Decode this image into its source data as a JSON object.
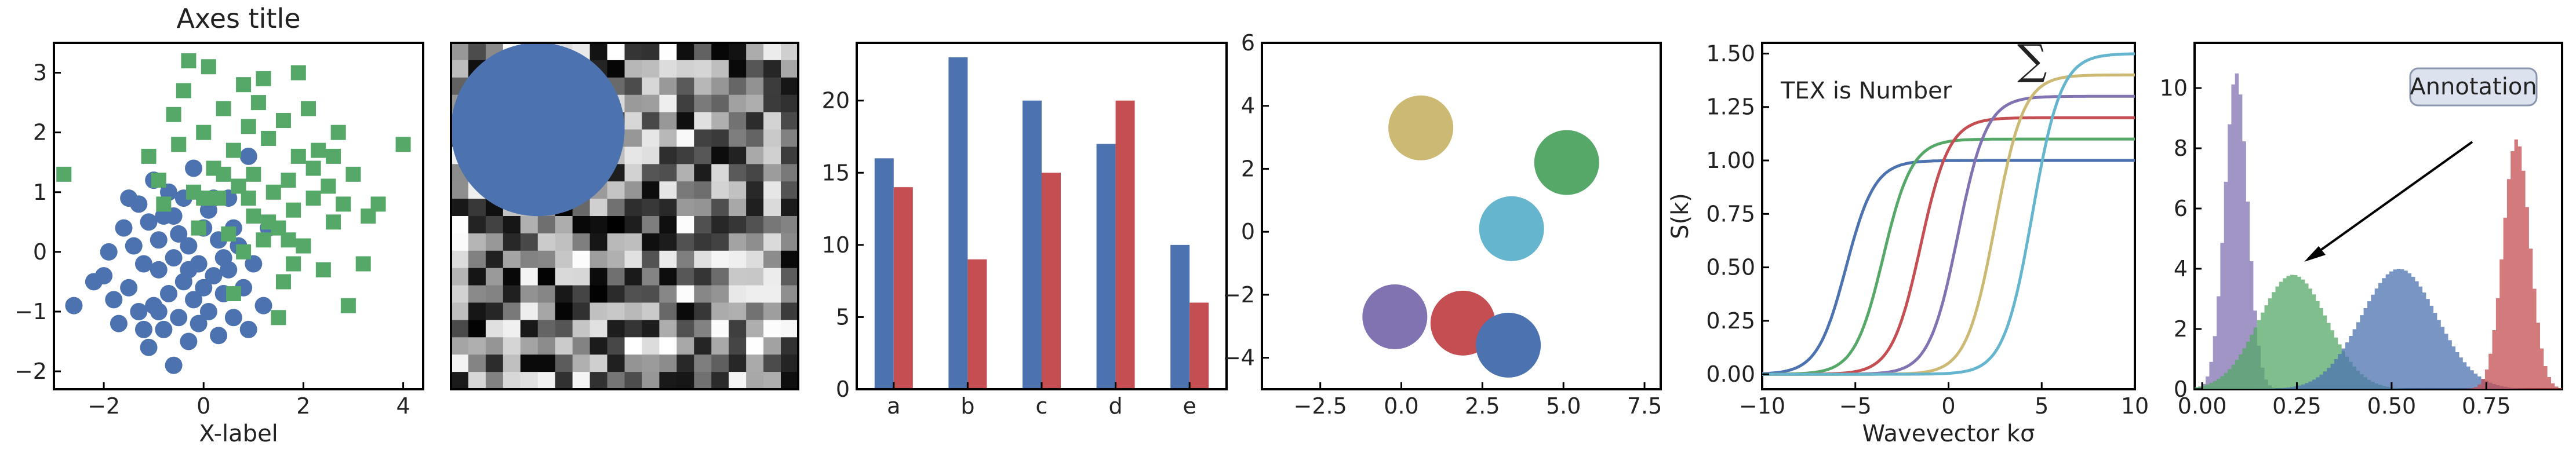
{
  "colors": {
    "blue": "#4c72b0",
    "green": "#55a868",
    "red": "#c44e52",
    "purple": "#8172b2",
    "yellow": "#ccb974",
    "cyan": "#64b5cd"
  },
  "chart_data": [
    {
      "type": "scatter",
      "title": "Axes title",
      "xlabel": "X-label",
      "ylabel": "",
      "xlim": [
        -3.0,
        4.4
      ],
      "ylim": [
        -2.3,
        3.5
      ],
      "xticks": [
        "−2",
        "0",
        "2",
        "4"
      ],
      "yticks": [
        "−2",
        "−1",
        "0",
        "1",
        "2",
        "3"
      ],
      "series": [
        {
          "marker": "circle",
          "color": "blue",
          "points": [
            [
              -2.6,
              -0.9
            ],
            [
              -2.2,
              -0.5
            ],
            [
              -2.0,
              -0.4
            ],
            [
              -1.9,
              0.0
            ],
            [
              -1.8,
              -0.8
            ],
            [
              -1.7,
              -1.2
            ],
            [
              -1.6,
              0.4
            ],
            [
              -1.5,
              -0.6
            ],
            [
              -1.4,
              0.1
            ],
            [
              -1.3,
              -1.0
            ],
            [
              -1.3,
              0.8
            ],
            [
              -1.2,
              -0.2
            ],
            [
              -1.1,
              -1.6
            ],
            [
              -1.1,
              0.5
            ],
            [
              -1.0,
              -0.9
            ],
            [
              -1.0,
              1.2
            ],
            [
              -0.9,
              -0.3
            ],
            [
              -0.9,
              0.2
            ],
            [
              -0.8,
              -1.3
            ],
            [
              -0.8,
              0.6
            ],
            [
              -0.7,
              -0.7
            ],
            [
              -0.7,
              1.0
            ],
            [
              -0.6,
              -0.1
            ],
            [
              -0.6,
              -1.9
            ],
            [
              -0.5,
              0.3
            ],
            [
              -0.5,
              -1.1
            ],
            [
              -0.4,
              -0.5
            ],
            [
              -0.4,
              0.9
            ],
            [
              -0.3,
              -1.5
            ],
            [
              -0.3,
              0.1
            ],
            [
              -0.2,
              -0.8
            ],
            [
              -0.2,
              1.4
            ],
            [
              -0.1,
              -0.2
            ],
            [
              -0.1,
              -1.2
            ],
            [
              0.0,
              0.4
            ],
            [
              0.0,
              -0.6
            ],
            [
              0.1,
              -1.0
            ],
            [
              0.1,
              0.7
            ],
            [
              0.2,
              -0.4
            ],
            [
              0.3,
              -1.4
            ],
            [
              0.3,
              0.2
            ],
            [
              0.4,
              -0.7
            ],
            [
              0.5,
              0.9
            ],
            [
              0.5,
              -0.3
            ],
            [
              0.6,
              -1.1
            ],
            [
              0.7,
              0.1
            ],
            [
              0.8,
              -0.6
            ],
            [
              0.9,
              1.6
            ],
            [
              1.0,
              -0.2
            ],
            [
              1.2,
              -0.9
            ],
            [
              1.3,
              0.4
            ],
            [
              -1.5,
              0.9
            ],
            [
              -0.9,
              -1.0
            ],
            [
              0.2,
              0.9
            ],
            [
              -0.6,
              0.6
            ],
            [
              0.6,
              0.4
            ],
            [
              -1.2,
              -1.3
            ],
            [
              0.9,
              -1.3
            ],
            [
              -0.3,
              -0.3
            ],
            [
              0.4,
              -0.1
            ]
          ]
        },
        {
          "marker": "square",
          "color": "green",
          "points": [
            [
              -2.8,
              1.3
            ],
            [
              -1.1,
              1.6
            ],
            [
              -0.9,
              1.2
            ],
            [
              -0.8,
              0.8
            ],
            [
              -0.6,
              2.3
            ],
            [
              -0.5,
              1.8
            ],
            [
              -0.4,
              2.7
            ],
            [
              -0.3,
              3.2
            ],
            [
              -0.2,
              1.0
            ],
            [
              -0.1,
              0.4
            ],
            [
              0.0,
              2.0
            ],
            [
              0.1,
              3.1
            ],
            [
              0.2,
              1.4
            ],
            [
              0.3,
              0.9
            ],
            [
              0.4,
              2.4
            ],
            [
              0.5,
              0.3
            ],
            [
              0.6,
              1.7
            ],
            [
              0.7,
              1.1
            ],
            [
              0.8,
              2.8
            ],
            [
              0.8,
              0.0
            ],
            [
              0.9,
              2.1
            ],
            [
              1.0,
              1.3
            ],
            [
              1.0,
              0.6
            ],
            [
              1.1,
              2.5
            ],
            [
              1.2,
              0.2
            ],
            [
              1.3,
              1.9
            ],
            [
              1.4,
              1.0
            ],
            [
              1.5,
              0.4
            ],
            [
              1.6,
              2.2
            ],
            [
              1.6,
              -0.5
            ],
            [
              1.7,
              1.2
            ],
            [
              1.8,
              0.7
            ],
            [
              1.9,
              3.0
            ],
            [
              1.9,
              1.6
            ],
            [
              2.0,
              0.1
            ],
            [
              2.1,
              2.4
            ],
            [
              2.2,
              0.9
            ],
            [
              2.3,
              1.7
            ],
            [
              2.4,
              -0.3
            ],
            [
              2.5,
              1.1
            ],
            [
              2.6,
              0.5
            ],
            [
              2.7,
              2.0
            ],
            [
              2.8,
              0.8
            ],
            [
              3.0,
              1.3
            ],
            [
              3.2,
              -0.2
            ],
            [
              3.3,
              0.6
            ],
            [
              2.9,
              -0.9
            ],
            [
              4.0,
              1.8
            ],
            [
              1.5,
              -1.1
            ],
            [
              0.6,
              -0.7
            ],
            [
              1.2,
              2.9
            ],
            [
              0.4,
              1.3
            ],
            [
              2.2,
              1.4
            ],
            [
              1.7,
              0.2
            ],
            [
              0.9,
              0.9
            ],
            [
              2.6,
              1.6
            ],
            [
              0.0,
              0.9
            ],
            [
              1.3,
              0.5
            ],
            [
              3.5,
              0.8
            ],
            [
              1.8,
              -0.2
            ]
          ]
        }
      ]
    },
    {
      "type": "heatmap",
      "rows": 20,
      "cols": 20,
      "overlay": {
        "shape": "circle",
        "color": "blue"
      }
    },
    {
      "type": "bar",
      "categories": [
        "a",
        "b",
        "c",
        "d",
        "e"
      ],
      "series": [
        {
          "color": "blue",
          "values": [
            16,
            23,
            20,
            17,
            10
          ]
        },
        {
          "color": "red",
          "values": [
            14,
            9,
            15,
            20,
            6
          ]
        }
      ],
      "ylim": [
        0,
        24
      ],
      "yticks": [
        "0",
        "5",
        "10",
        "15",
        "20"
      ]
    },
    {
      "type": "scatter",
      "xlim": [
        -4.3,
        8.0
      ],
      "ylim": [
        -5.0,
        6.0
      ],
      "xticks": [
        "−2.5",
        "0.0",
        "2.5",
        "5.0",
        "7.5"
      ],
      "yticks": [
        "−4",
        "−2",
        "0",
        "2",
        "4",
        "6"
      ],
      "circles": [
        {
          "x": 0.6,
          "y": 3.3,
          "color": "yellow"
        },
        {
          "x": 5.1,
          "y": 2.2,
          "color": "green"
        },
        {
          "x": 3.4,
          "y": 0.1,
          "color": "cyan"
        },
        {
          "x": -0.2,
          "y": -2.7,
          "color": "purple"
        },
        {
          "x": 1.9,
          "y": -2.9,
          "color": "red"
        },
        {
          "x": 3.3,
          "y": -3.6,
          "color": "blue"
        }
      ]
    },
    {
      "type": "line",
      "xlabel": "Wavevector kσ",
      "ylabel": "S(k)",
      "xlim": [
        -10,
        10
      ],
      "ylim": [
        -0.07,
        1.55
      ],
      "xticks": [
        "−10",
        "−5",
        "0",
        "5",
        "10"
      ],
      "yticks": [
        "0.00",
        "0.25",
        "0.50",
        "0.75",
        "1.00",
        "1.25",
        "1.50"
      ],
      "annotation": "TEX is Number",
      "series": [
        {
          "color": "blue",
          "center": -5.5,
          "plateau": 1.0
        },
        {
          "color": "green",
          "center": -3.5,
          "plateau": 1.1
        },
        {
          "color": "red",
          "center": -1.5,
          "plateau": 1.2
        },
        {
          "color": "purple",
          "center": 0.5,
          "plateau": 1.3
        },
        {
          "color": "yellow",
          "center": 2.5,
          "plateau": 1.4
        },
        {
          "color": "cyan",
          "center": 4.5,
          "plateau": 1.5
        }
      ]
    },
    {
      "type": "histogram",
      "xlim": [
        -0.02,
        0.95
      ],
      "ylim": [
        0,
        11.5
      ],
      "xticks": [
        "0.00",
        "0.25",
        "0.50",
        "0.75"
      ],
      "yticks": [
        "0",
        "2",
        "4",
        "6",
        "8",
        "10"
      ],
      "annotation": "Annotation",
      "series": [
        {
          "color": "purple",
          "mean": 0.09,
          "sd": 0.03,
          "peak": 10.5
        },
        {
          "color": "green",
          "mean": 0.24,
          "sd": 0.09,
          "peak": 3.8
        },
        {
          "color": "blue",
          "mean": 0.52,
          "sd": 0.1,
          "peak": 4.0
        },
        {
          "color": "red",
          "mean": 0.83,
          "sd": 0.035,
          "peak": 8.3
        }
      ]
    }
  ]
}
